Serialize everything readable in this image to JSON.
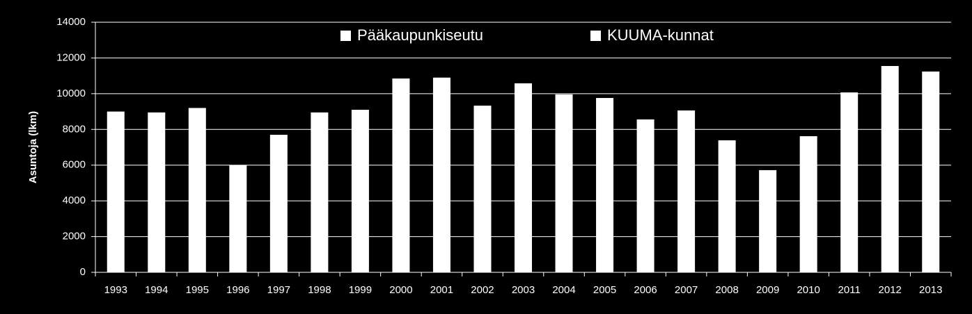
{
  "chart_data": {
    "type": "bar",
    "y_label": "Asuntoja (lkm)",
    "legend": [
      {
        "name": "Pääkaupunkiseutu",
        "color": "#ffffff"
      },
      {
        "name": "KUUMA-kunnat",
        "color": "#ffffff"
      }
    ],
    "categories": [
      "1993",
      "1994",
      "1995",
      "1996",
      "1997",
      "1998",
      "1999",
      "2000",
      "2001",
      "2002",
      "2003",
      "2004",
      "2005",
      "2006",
      "2007",
      "2008",
      "2009",
      "2010",
      "2011",
      "2012",
      "2013"
    ],
    "values": [
      9000,
      8950,
      9200,
      6000,
      7700,
      8950,
      9100,
      10850,
      10900,
      9330,
      10580,
      9960,
      9760,
      8560,
      9060,
      7390,
      5720,
      7620,
      10070,
      11550,
      11240
    ],
    "color": "#ffffff",
    "ylim": [
      0,
      14000
    ],
    "yticks": [
      0,
      2000,
      4000,
      6000,
      8000,
      10000,
      12000,
      14000
    ],
    "grid": true
  }
}
